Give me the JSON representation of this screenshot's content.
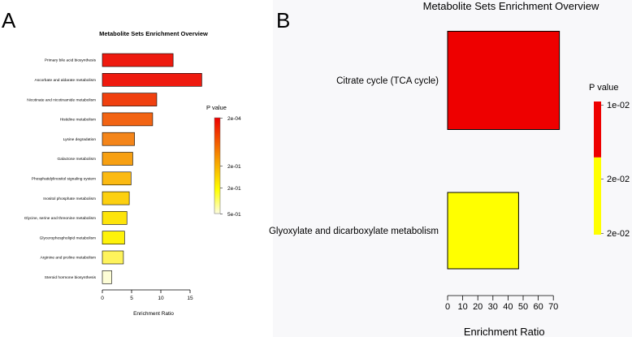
{
  "panel_labels": {
    "a": "A",
    "b": "B"
  },
  "colors": {
    "high": "#ee0000",
    "low": "#ffff00",
    "pale": "#fdfde0"
  },
  "chart_data": [
    {
      "type": "bar",
      "orientation": "horizontal",
      "title": "Metabolite Sets Enrichment Overview",
      "xlabel": "Enrichment Ratio",
      "ylabel": "",
      "xlim": [
        0,
        17.5
      ],
      "xticks": [
        0,
        5,
        10,
        15
      ],
      "categories": [
        "Primary bile acid biosynthesis",
        "Ascorbate and aldarate metabolism",
        "Nicotinate and nicotinamide metabolism",
        "Histidine metabolism",
        "Lysine degradation",
        "Galactose metabolism",
        "Phosphatidylinositol signaling system",
        "Inositol phosphate metabolism",
        "Glycine, serine and threonine metabolism",
        "Glycerophospholipid metabolism",
        "Arginine and proline metabolism",
        "Steroid hormone biosynthesis"
      ],
      "values": [
        12.1,
        17.0,
        9.3,
        8.6,
        5.5,
        5.2,
        4.9,
        4.6,
        4.2,
        3.8,
        3.6,
        1.6
      ],
      "bar_colors": [
        "#ee1a0f",
        "#ee1a0f",
        "#f0400f",
        "#f26414",
        "#f4851a",
        "#f7a012",
        "#fbba12",
        "#fcd010",
        "#fde40a",
        "#fef20a",
        "#fef35c",
        "#fdfdd6"
      ],
      "legend": {
        "title": "P value",
        "labels": [
          "2e-04",
          "2e-01",
          "2e-01",
          "5e-01"
        ],
        "placement": "right"
      }
    },
    {
      "type": "bar",
      "orientation": "horizontal",
      "title": "Metabolite Sets Enrichment Overview",
      "xlabel": "Enrichment Ratio",
      "ylabel": "",
      "xlim": [
        0,
        75
      ],
      "xticks": [
        0,
        10,
        20,
        30,
        40,
        50,
        60,
        70
      ],
      "categories": [
        "Citrate cycle (TCA cycle)",
        "Glyoxylate and dicarboxylate metabolism"
      ],
      "values": [
        74,
        47
      ],
      "bar_colors": [
        "#ee0000",
        "#ffff00"
      ],
      "legend": {
        "title": "P value",
        "labels": [
          "1e-02",
          "2e-02",
          "2e-02"
        ],
        "placement": "right"
      }
    }
  ]
}
